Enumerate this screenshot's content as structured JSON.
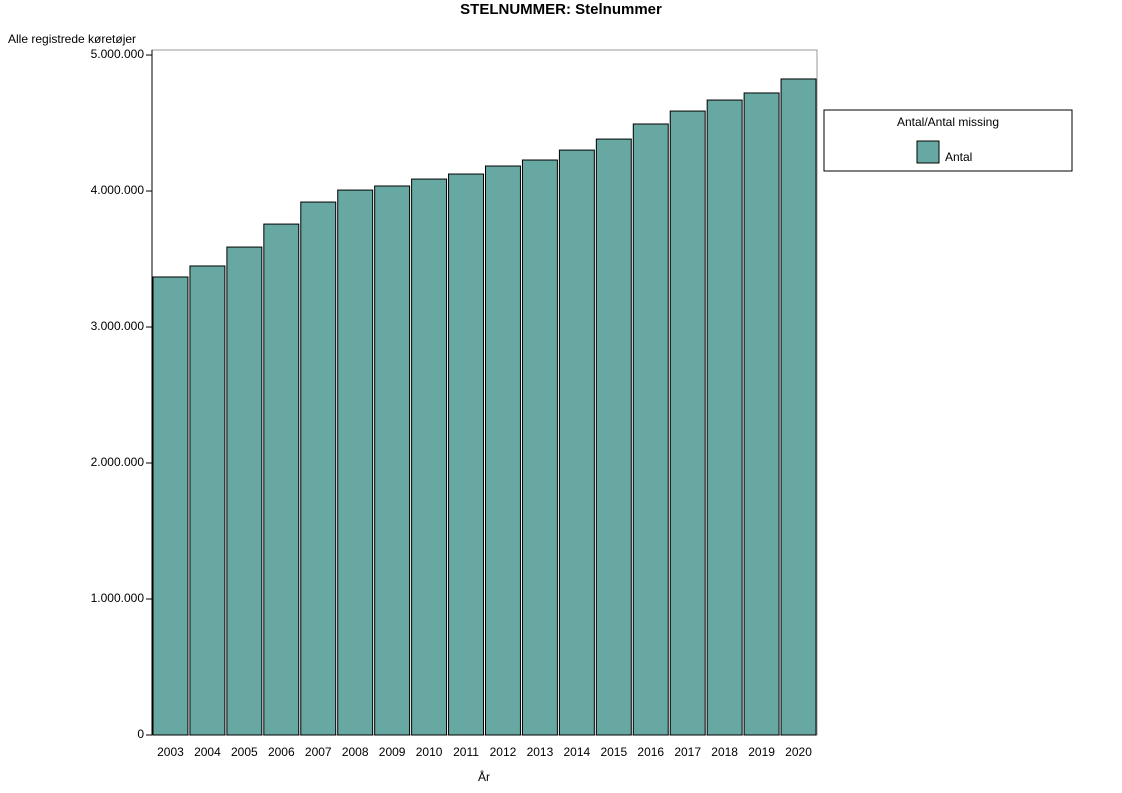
{
  "chart_data": {
    "type": "bar",
    "title": "STELNUMMER: Stelnummer",
    "y_label": "Alle registrede køretøjer",
    "x_label": "År",
    "legend_title": "Antal/Antal missing",
    "legend_position": "right",
    "categories": [
      "2003",
      "2004",
      "2005",
      "2006",
      "2007",
      "2008",
      "2009",
      "2010",
      "2011",
      "2012",
      "2013",
      "2014",
      "2015",
      "2016",
      "2017",
      "2018",
      "2019",
      "2020"
    ],
    "series": [
      {
        "name": "Antal",
        "color": "#68a8a2",
        "values": [
          3368000,
          3449000,
          3588000,
          3757000,
          3919000,
          4007000,
          4037000,
          4088000,
          4125000,
          4184000,
          4228000,
          4301000,
          4382000,
          4493000,
          4588000,
          4669000,
          4721000,
          4824000
        ]
      }
    ],
    "ylim": [
      0,
      5037000
    ],
    "yticks": [
      {
        "value": 0,
        "label": "0"
      },
      {
        "value": 1000000,
        "label": "1.000.000"
      },
      {
        "value": 2000000,
        "label": "2.000.000"
      },
      {
        "value": 3000000,
        "label": "3.000.000"
      },
      {
        "value": 4000000,
        "label": "4.000.000"
      },
      {
        "value": 5000000,
        "label": "5.000.000"
      }
    ]
  }
}
